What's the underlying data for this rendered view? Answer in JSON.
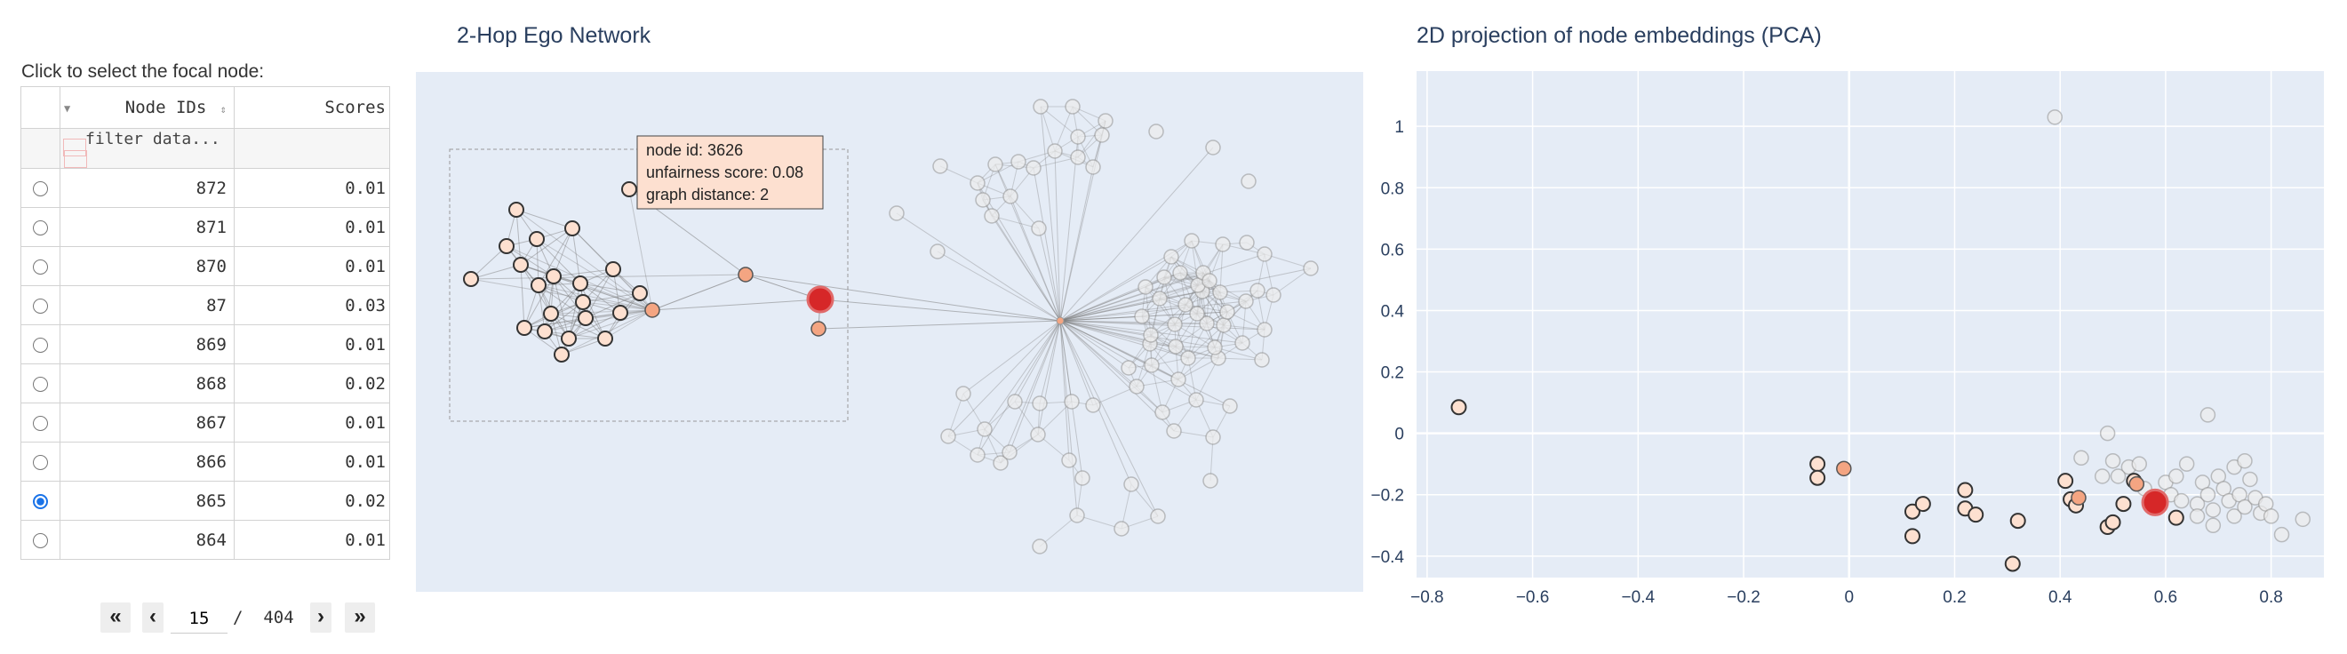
{
  "table": {
    "caption": "Click to select the focal node:",
    "headers": {
      "node_ids": "Node IDs",
      "scores": "Scores"
    },
    "filter_placeholder": "filter data...",
    "rows": [
      {
        "id": "872",
        "score": "0.01",
        "selected": false
      },
      {
        "id": "871",
        "score": "0.01",
        "selected": false
      },
      {
        "id": "870",
        "score": "0.01",
        "selected": false
      },
      {
        "id": "87",
        "score": "0.03",
        "selected": false
      },
      {
        "id": "869",
        "score": "0.01",
        "selected": false
      },
      {
        "id": "868",
        "score": "0.02",
        "selected": false
      },
      {
        "id": "867",
        "score": "0.01",
        "selected": false
      },
      {
        "id": "866",
        "score": "0.01",
        "selected": false
      },
      {
        "id": "865",
        "score": "0.02",
        "selected": true
      },
      {
        "id": "864",
        "score": "0.01",
        "selected": false
      }
    ]
  },
  "pager": {
    "first": "«",
    "prev": "‹",
    "page": "15",
    "separator": "/",
    "total": "404",
    "next": "›",
    "last": "»"
  },
  "network": {
    "title": "2-Hop Ego Network",
    "tooltip": {
      "line1": "node id: 3626",
      "line2": "unfairness score: 0.08",
      "line3": "graph distance: 2"
    }
  },
  "pca": {
    "title": "2D projection of node embeddings (PCA)"
  },
  "colors": {
    "focal": "#d62728",
    "hop1": "#f4a582",
    "hop2": "#fde0d0",
    "faded": "#ececec",
    "plot_bg": "#e5ecf6"
  },
  "chart_data": {
    "type": "scatter",
    "title": "2D projection of node embeddings (PCA)",
    "xlabel": "",
    "ylabel": "",
    "xlim": [
      -0.82,
      0.9
    ],
    "ylim": [
      -0.47,
      1.18
    ],
    "xticks": [
      -0.8,
      -0.6,
      -0.4,
      -0.2,
      0,
      0.2,
      0.4,
      0.6,
      0.8
    ],
    "yticks": [
      -0.4,
      -0.2,
      0,
      0.2,
      0.4,
      0.6,
      0.8,
      1
    ],
    "grid": true,
    "series": [
      {
        "category": "focal",
        "points": [
          [
            0.58,
            -0.225
          ]
        ]
      },
      {
        "category": "hop1",
        "points": [
          [
            -0.01,
            -0.115
          ],
          [
            0.435,
            -0.21
          ],
          [
            0.545,
            -0.165
          ]
        ]
      },
      {
        "category": "hop2",
        "points": [
          [
            -0.74,
            0.085
          ],
          [
            -0.06,
            -0.1
          ],
          [
            -0.06,
            -0.145
          ],
          [
            0.12,
            -0.255
          ],
          [
            0.14,
            -0.23
          ],
          [
            0.12,
            -0.335
          ],
          [
            0.22,
            -0.185
          ],
          [
            0.22,
            -0.245
          ],
          [
            0.24,
            -0.265
          ],
          [
            0.32,
            -0.285
          ],
          [
            0.31,
            -0.425
          ],
          [
            0.41,
            -0.155
          ],
          [
            0.42,
            -0.215
          ],
          [
            0.43,
            -0.235
          ],
          [
            0.49,
            -0.305
          ],
          [
            0.5,
            -0.29
          ],
          [
            0.52,
            -0.23
          ],
          [
            0.54,
            -0.155
          ],
          [
            0.62,
            -0.275
          ]
        ]
      },
      {
        "category": "faded",
        "points": [
          [
            0.39,
            1.03
          ],
          [
            0.49,
            0.0
          ],
          [
            0.68,
            0.06
          ],
          [
            0.44,
            -0.08
          ],
          [
            0.5,
            -0.09
          ],
          [
            0.53,
            -0.11
          ],
          [
            0.55,
            -0.1
          ],
          [
            0.48,
            -0.14
          ],
          [
            0.51,
            -0.14
          ],
          [
            0.56,
            -0.18
          ],
          [
            0.6,
            -0.16
          ],
          [
            0.62,
            -0.14
          ],
          [
            0.61,
            -0.2
          ],
          [
            0.64,
            -0.1
          ],
          [
            0.66,
            -0.23
          ],
          [
            0.67,
            -0.16
          ],
          [
            0.68,
            -0.2
          ],
          [
            0.69,
            -0.25
          ],
          [
            0.7,
            -0.14
          ],
          [
            0.71,
            -0.18
          ],
          [
            0.72,
            -0.22
          ],
          [
            0.73,
            -0.27
          ],
          [
            0.73,
            -0.11
          ],
          [
            0.74,
            -0.2
          ],
          [
            0.75,
            -0.09
          ],
          [
            0.75,
            -0.24
          ],
          [
            0.76,
            -0.15
          ],
          [
            0.77,
            -0.21
          ],
          [
            0.78,
            -0.26
          ],
          [
            0.79,
            -0.23
          ],
          [
            0.8,
            -0.27
          ],
          [
            0.82,
            -0.33
          ],
          [
            0.86,
            -0.28
          ],
          [
            0.69,
            -0.3
          ],
          [
            0.66,
            -0.27
          ],
          [
            0.63,
            -0.22
          ]
        ]
      }
    ]
  }
}
